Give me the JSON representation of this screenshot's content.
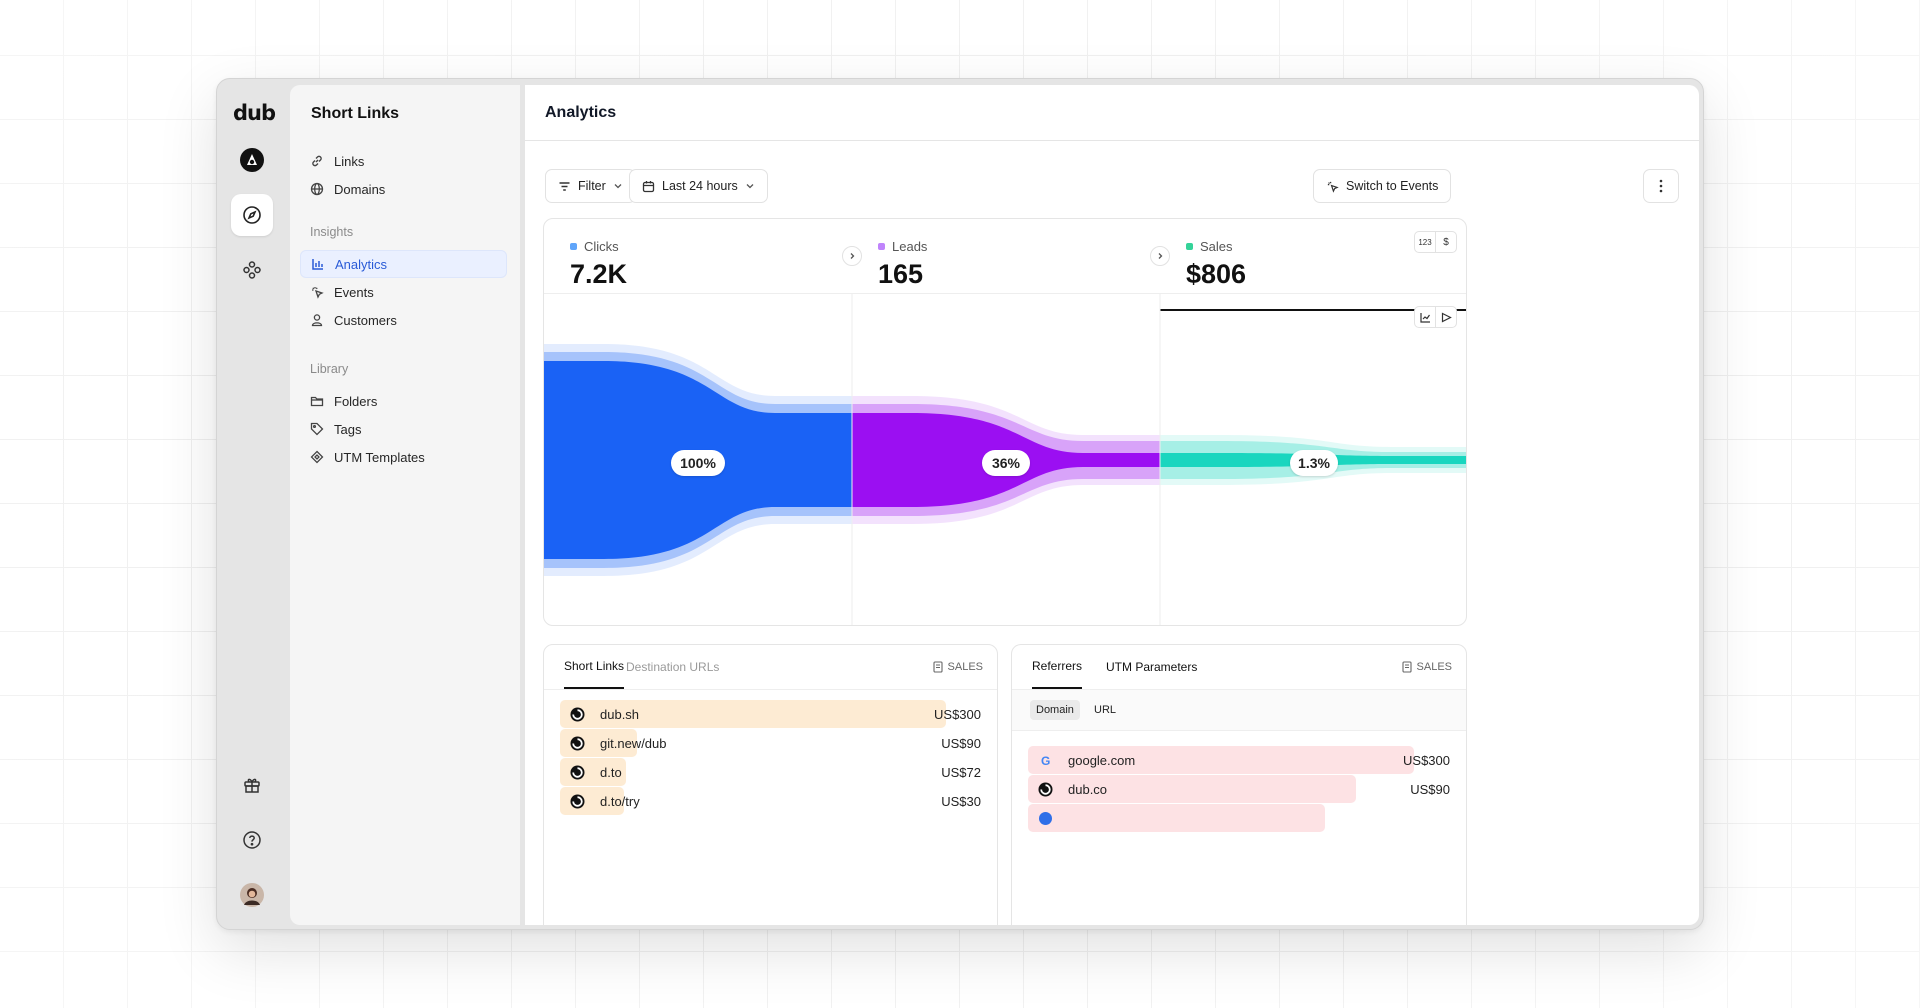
{
  "rail": {
    "logo": "dub"
  },
  "nav": {
    "title": "Short Links",
    "top_items": [
      {
        "label": "Links"
      },
      {
        "label": "Domains"
      }
    ],
    "insights_label": "Insights",
    "insights": [
      {
        "label": "Analytics"
      },
      {
        "label": "Events"
      },
      {
        "label": "Customers"
      }
    ],
    "library_label": "Library",
    "library": [
      {
        "label": "Folders"
      },
      {
        "label": "Tags"
      },
      {
        "label": "UTM Templates"
      }
    ]
  },
  "main": {
    "title": "Analytics",
    "filter_label": "Filter",
    "range_label": "Last 24 hours",
    "switch_label": "Switch to Events"
  },
  "metrics": [
    {
      "label": "Clicks",
      "value": "7.2K",
      "color": "#3b82f6"
    },
    {
      "label": "Leads",
      "value": "165",
      "color": "#c084fc"
    },
    {
      "label": "Sales",
      "value": "$806",
      "color": "#34d399"
    }
  ],
  "sales_toggle": {
    "count": "123",
    "currency": "$"
  },
  "chart_data": {
    "type": "funnel",
    "stages": [
      "Clicks",
      "Leads",
      "Sales"
    ],
    "percent_labels": [
      "100%",
      "36%",
      "1.3%"
    ],
    "colors": [
      "#1a62f5",
      "#9b0ff2",
      "#19d6bf"
    ]
  },
  "links_panel": {
    "tabs": [
      "Short Links",
      "Destination URLs"
    ],
    "metric_label": "SALES",
    "rows": [
      {
        "name": "dub.sh",
        "amount": "US$300",
        "share": 1.0
      },
      {
        "name": "git.new/dub",
        "amount": "US$90",
        "share": 0.2
      },
      {
        "name": "d.to",
        "amount": "US$72",
        "share": 0.17
      },
      {
        "name": "d.to/try",
        "amount": "US$30",
        "share": 0.08
      }
    ]
  },
  "referrers_panel": {
    "tabs": [
      "Referrers",
      "UTM Parameters"
    ],
    "metric_label": "SALES",
    "subtabs": [
      "Domain",
      "URL"
    ],
    "rows": [
      {
        "name": "google.com",
        "amount": "US$300",
        "share": 1.0
      },
      {
        "name": "dub.co",
        "amount": "US$90",
        "share": 0.85
      },
      {
        "name": "",
        "amount": "",
        "share": 0.77
      }
    ]
  }
}
